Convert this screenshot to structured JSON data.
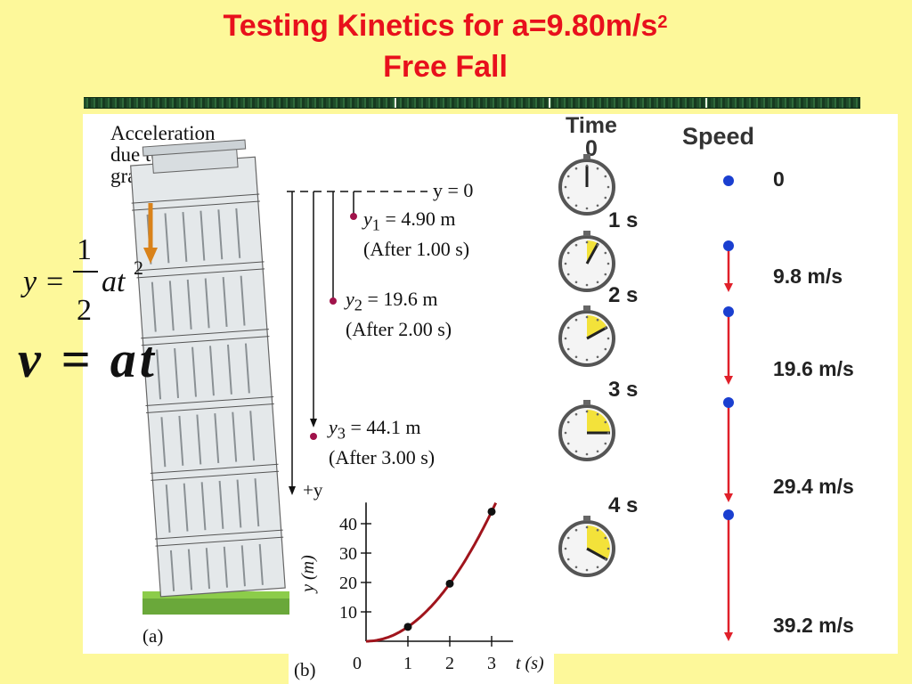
{
  "title": {
    "line1": "Testing Kinetics for a=9.80m/s",
    "sup": "2",
    "line2": "Free Fall"
  },
  "tower": {
    "caption": [
      "Acceleration",
      "due to",
      "gravity"
    ],
    "ref_label": "y = 0",
    "points": [
      {
        "label": "y",
        "sub": "1",
        "value": " = 4.90 m",
        "time": "(After 1.00 s)"
      },
      {
        "label": "y",
        "sub": "2",
        "value": " = 19.6 m",
        "time": "(After 2.00 s)"
      },
      {
        "label": "y",
        "sub": "3",
        "value": " = 44.1 m",
        "time": "(After 3.00 s)"
      }
    ],
    "axis_label": "+y",
    "panel_label": "(a)"
  },
  "equations": {
    "position": {
      "lhs": "y",
      "num": "1",
      "den": "2",
      "rhs": "at",
      "exp": "2"
    },
    "velocity": "v = at"
  },
  "speed_table": {
    "time_header": [
      "Time",
      "0"
    ],
    "speed_header": "Speed",
    "rows": [
      {
        "time": "",
        "speed": "0",
        "fraction": 0
      },
      {
        "time": "1 s",
        "speed": "9.8 m/s",
        "fraction": 0.08
      },
      {
        "time": "2 s",
        "speed": "19.6 m/s",
        "fraction": 0.17
      },
      {
        "time": "3 s",
        "speed": "29.4 m/s",
        "fraction": 0.25
      },
      {
        "time": "4 s",
        "speed": "39.2 m/s",
        "fraction": 0.33
      }
    ],
    "colors": {
      "dot": "#1a3fd0",
      "arrow": "#e0202a",
      "dial": "#f3e23a"
    }
  },
  "chart_data": {
    "type": "line",
    "xlabel": "t (s)",
    "ylabel": "y (m)",
    "xlim": [
      0,
      3.3
    ],
    "ylim": [
      0,
      46
    ],
    "xticks": [
      "0",
      "1",
      "2",
      "3"
    ],
    "yticks": [
      "10",
      "20",
      "30",
      "40"
    ],
    "series": [
      {
        "x": [
          0,
          1,
          2,
          3
        ],
        "y": [
          0,
          4.9,
          19.6,
          44.1
        ]
      }
    ],
    "panel_label": "(b)",
    "curve_color": "#a0141c"
  }
}
